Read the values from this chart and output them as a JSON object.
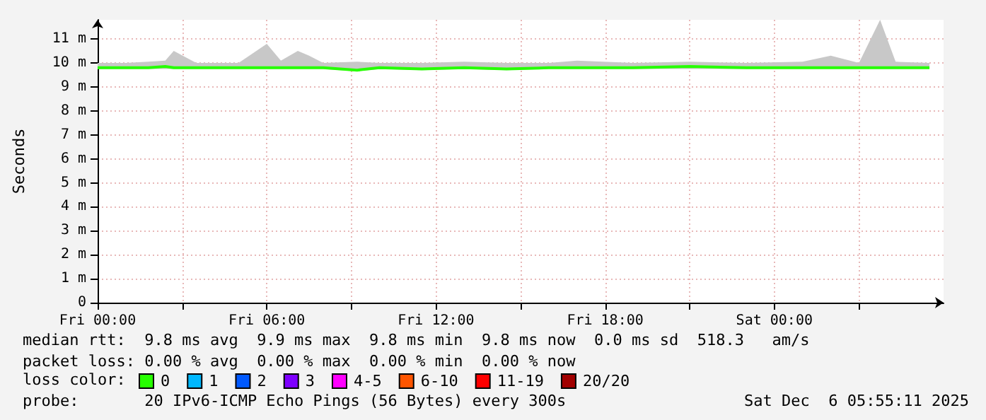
{
  "chart_data": {
    "type": "line",
    "ylabel": "Seconds",
    "legend_title": "loss color:",
    "legend": "bottom left",
    "grid": true,
    "marker": "none",
    "xlim": [
      "2025-12-05T00:00",
      "2025-12-06T06:00"
    ],
    "xticks": [
      {
        "value": "2025-12-05T00:00",
        "label": "Fri 00:00"
      },
      {
        "value": "2025-12-05T03:00",
        "label": null
      },
      {
        "value": "2025-12-05T06:00",
        "label": "Fri 06:00"
      },
      {
        "value": "2025-12-05T09:00",
        "label": null
      },
      {
        "value": "2025-12-05T12:00",
        "label": "Fri 12:00"
      },
      {
        "value": "2025-12-05T15:00",
        "label": null
      },
      {
        "value": "2025-12-05T18:00",
        "label": "Fri 18:00"
      },
      {
        "value": "2025-12-05T21:00",
        "label": null
      },
      {
        "value": "2025-12-06T00:00",
        "label": "Sat 00:00"
      },
      {
        "value": "2025-12-06T03:00",
        "label": null
      }
    ],
    "ylim": [
      0,
      11.8
    ],
    "yticks": [
      {
        "value": 0,
        "label": "0"
      },
      {
        "value": 1,
        "label": "1 m"
      },
      {
        "value": 2,
        "label": "2 m"
      },
      {
        "value": 3,
        "label": "3 m"
      },
      {
        "value": 4,
        "label": "4 m"
      },
      {
        "value": 5,
        "label": "5 m"
      },
      {
        "value": 6,
        "label": "6 m"
      },
      {
        "value": 7,
        "label": "7 m"
      },
      {
        "value": 8,
        "label": "8 m"
      },
      {
        "value": 9,
        "label": "9 m"
      },
      {
        "value": 10,
        "label": "10 m"
      },
      {
        "value": 11,
        "label": "11 m"
      }
    ],
    "x": [
      "2025-12-05T00:00",
      "2025-12-05T01:00",
      "2025-12-05T01:48",
      "2025-12-05T02:24",
      "2025-12-05T02:42",
      "2025-12-05T03:30",
      "2025-12-05T05:00",
      "2025-12-05T06:00",
      "2025-12-05T06:30",
      "2025-12-05T07:06",
      "2025-12-05T07:30",
      "2025-12-05T08:00",
      "2025-12-05T09:12",
      "2025-12-05T10:00",
      "2025-12-05T11:30",
      "2025-12-05T13:00",
      "2025-12-05T14:30",
      "2025-12-05T16:00",
      "2025-12-05T17:00",
      "2025-12-05T19:00",
      "2025-12-05T21:00",
      "2025-12-05T23:00",
      "2025-12-06T01:00",
      "2025-12-06T02:00",
      "2025-12-06T03:00",
      "2025-12-06T03:45",
      "2025-12-06T04:18",
      "2025-12-06T05:30"
    ],
    "series": [
      {
        "name": "0",
        "color": "#26ff00",
        "values": [
          9.8,
          9.8,
          9.8,
          9.85,
          9.8,
          9.8,
          9.8,
          9.8,
          9.8,
          9.8,
          9.8,
          9.8,
          9.7,
          9.8,
          9.75,
          9.8,
          9.75,
          9.8,
          9.8,
          9.8,
          9.85,
          9.8,
          9.8,
          9.8,
          9.8,
          9.8,
          9.8,
          9.8
        ],
        "lower": [
          9.75,
          9.75,
          9.75,
          9.75,
          9.75,
          9.75,
          9.75,
          9.75,
          9.75,
          9.75,
          9.75,
          9.75,
          9.65,
          9.75,
          9.7,
          9.75,
          9.7,
          9.75,
          9.75,
          9.75,
          9.75,
          9.75,
          9.75,
          9.75,
          9.75,
          9.75,
          9.75,
          9.75
        ],
        "upper": [
          10.0,
          10.0,
          10.05,
          10.1,
          10.5,
          10.0,
          10.0,
          10.8,
          10.1,
          10.5,
          10.3,
          10.0,
          10.05,
          10.0,
          10.0,
          10.05,
          10.0,
          10.0,
          10.1,
          10.0,
          10.05,
          10.0,
          10.05,
          10.3,
          10.0,
          11.8,
          10.05,
          10.0
        ]
      },
      {
        "name": "1",
        "color": "#00b8ff",
        "values": [
          null,
          null,
          null,
          null,
          null,
          null,
          null,
          null,
          null,
          null,
          null,
          null,
          null,
          null,
          null,
          null,
          null,
          null,
          null,
          null,
          null,
          null,
          null,
          null,
          null,
          null,
          null,
          null
        ]
      },
      {
        "name": "2",
        "color": "#0059ff",
        "values": [
          null,
          null,
          null,
          null,
          null,
          null,
          null,
          null,
          null,
          null,
          null,
          null,
          null,
          null,
          null,
          null,
          null,
          null,
          null,
          null,
          null,
          null,
          null,
          null,
          null,
          null,
          null,
          null
        ]
      },
      {
        "name": "3",
        "color": "#7e00ff",
        "values": [
          null,
          null,
          null,
          null,
          null,
          null,
          null,
          null,
          null,
          null,
          null,
          null,
          null,
          null,
          null,
          null,
          null,
          null,
          null,
          null,
          null,
          null,
          null,
          null,
          null,
          null,
          null,
          null
        ]
      },
      {
        "name": "4-5",
        "color": "#ff00ff",
        "values": [
          null,
          null,
          null,
          null,
          null,
          null,
          null,
          null,
          null,
          null,
          null,
          null,
          null,
          null,
          null,
          null,
          null,
          null,
          null,
          null,
          null,
          null,
          null,
          null,
          null,
          null,
          null,
          null
        ]
      },
      {
        "name": "6-10",
        "color": "#ff5500",
        "values": [
          null,
          null,
          null,
          null,
          null,
          null,
          null,
          null,
          null,
          null,
          null,
          null,
          null,
          null,
          null,
          null,
          null,
          null,
          null,
          null,
          null,
          null,
          null,
          null,
          null,
          null,
          null,
          null
        ]
      },
      {
        "name": "11-19",
        "color": "#ff0000",
        "values": [
          null,
          null,
          null,
          null,
          null,
          null,
          null,
          null,
          null,
          null,
          null,
          null,
          null,
          null,
          null,
          null,
          null,
          null,
          null,
          null,
          null,
          null,
          null,
          null,
          null,
          null,
          null,
          null
        ]
      },
      {
        "name": "20/20",
        "color": "#a10000",
        "values": [
          null,
          null,
          null,
          null,
          null,
          null,
          null,
          null,
          null,
          null,
          null,
          null,
          null,
          null,
          null,
          null,
          null,
          null,
          null,
          null,
          null,
          null,
          null,
          null,
          null,
          null,
          null,
          null
        ]
      }
    ],
    "annotations": [
      "median rtt:  9.8 ms avg  9.9 ms max  9.8 ms min  9.8 ms now  0.0 ms sd  518.3   am/s",
      "packet loss: 0.00 % avg  0.00 % max  0.00 % min  0.00 % now",
      "probe:       20 IPv6-ICMP Echo Pings (56 Bytes) every 300s",
      "Sat Dec  6 05:55:11 2025"
    ]
  }
}
